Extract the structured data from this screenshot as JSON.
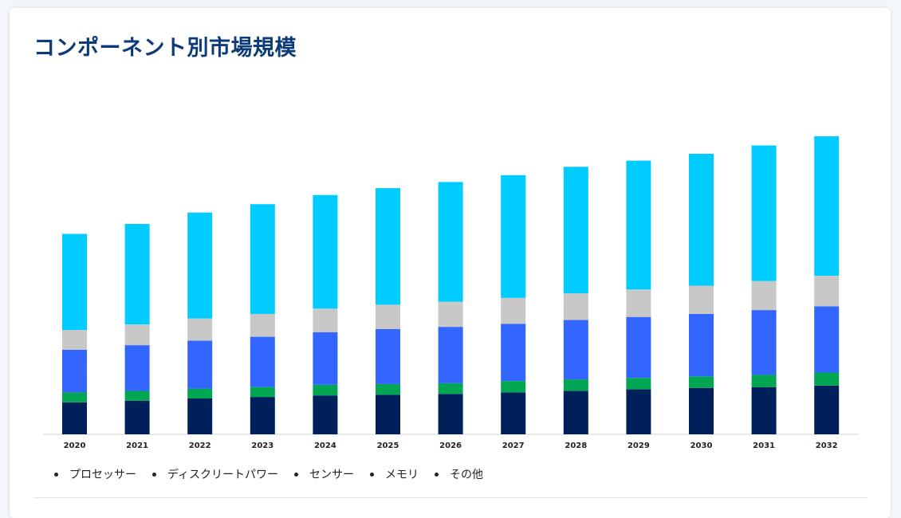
{
  "title": "コンポーネント別市場規模",
  "chart_data": {
    "type": "bar",
    "stacked": true,
    "title": "コンポーネント別市場規模",
    "categories": [
      "2020",
      "2021",
      "2022",
      "2023",
      "2024",
      "2025",
      "2026",
      "2027",
      "2028",
      "2029",
      "2030",
      "2031",
      "2032"
    ],
    "ylim": [
      0,
      390
    ],
    "grid": false,
    "legend_position": "bottom-left",
    "series": [
      {
        "name": "プロセッサー",
        "color": "#00205b",
        "values": [
          42,
          44,
          47,
          49,
          51,
          52,
          53,
          55,
          57,
          59,
          61,
          62,
          64
        ]
      },
      {
        "name": "ディスクリートパワー",
        "color": "#00a651",
        "values": [
          13,
          13,
          13,
          13,
          14,
          14,
          14,
          15,
          15,
          15,
          15,
          16,
          17
        ]
      },
      {
        "name": "センサー",
        "color": "#3366ff",
        "values": [
          56,
          60,
          63,
          66,
          69,
          72,
          74,
          75,
          78,
          80,
          82,
          85,
          87
        ]
      },
      {
        "name": "メモリ",
        "color": "#c8c8c8",
        "values": [
          26,
          27,
          29,
          30,
          31,
          32,
          33,
          34,
          35,
          36,
          37,
          38,
          40
        ]
      },
      {
        "name": "その他",
        "color": "#00ccff",
        "values": [
          126,
          132,
          139,
          144,
          149,
          153,
          157,
          161,
          166,
          169,
          173,
          178,
          183
        ]
      }
    ]
  }
}
